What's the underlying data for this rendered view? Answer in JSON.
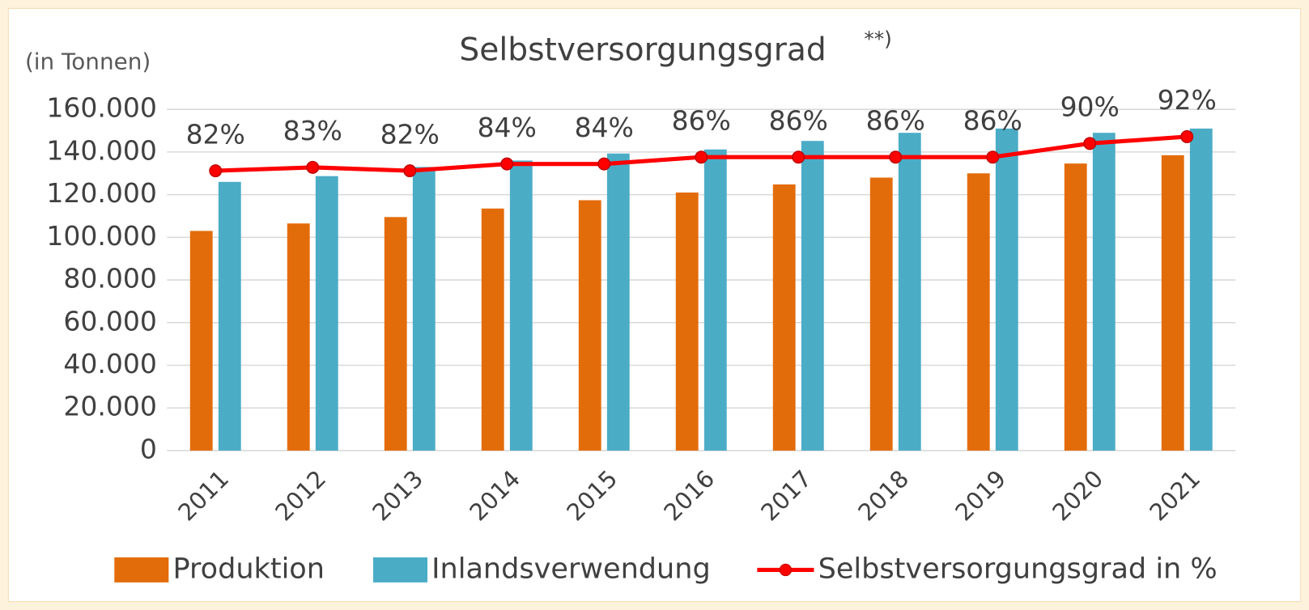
{
  "chart_data": {
    "type": "bar_line",
    "title": "Selbstversorgungsgrad",
    "title_note": "**)",
    "subtitle": "(in Tonnen)",
    "categories": [
      "2011",
      "2012",
      "2013",
      "2014",
      "2015",
      "2016",
      "2017",
      "2018",
      "2019",
      "2020",
      "2021"
    ],
    "series": [
      {
        "name": "Produktion",
        "type": "bar",
        "color": "#e36c0a",
        "values": [
          103000,
          106500,
          109500,
          113500,
          117400,
          121000,
          124800,
          128000,
          130000,
          134600,
          138500
        ]
      },
      {
        "name": "Inlandsverwendung",
        "type": "bar",
        "color": "#4bacc6",
        "values": [
          126000,
          128700,
          133000,
          136000,
          139300,
          141200,
          145200,
          149000,
          151000,
          149000,
          151000
        ]
      },
      {
        "name": "Selbstversorgungsgrad in %",
        "type": "line",
        "axis": "y2",
        "color": "#ff0000",
        "values": [
          82,
          83,
          82,
          84,
          84,
          86,
          86,
          86,
          86,
          90,
          92
        ],
        "value_labels": [
          "82%",
          "83%",
          "82%",
          "84%",
          "84%",
          "86%",
          "86%",
          "86%",
          "86%",
          "90%",
          "92%"
        ]
      }
    ],
    "ylim": [
      0,
      160000
    ],
    "yticks": [
      0,
      {
        "value": 20000,
        "label": "20.000"
      },
      {
        "value": 40000,
        "label": "40.000"
      },
      {
        "value": 60000,
        "label": "60.000"
      },
      {
        "value": 80000,
        "label": "80.000"
      },
      {
        "value": 100000,
        "label": "100.000"
      },
      {
        "value": 120000,
        "label": "120.000"
      },
      {
        "value": 140000,
        "label": "140.000"
      },
      {
        "value": 160000,
        "label": "160.000"
      }
    ],
    "y2lim": [
      0,
      100
    ],
    "grid": true,
    "legend": "bottom"
  }
}
